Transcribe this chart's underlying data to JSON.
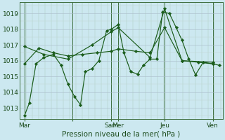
{
  "bg_color": "#cce8f0",
  "line_color": "#1a5c1a",
  "marker_color": "#1a5c1a",
  "xlabel": "Pression niveau de la mer( hPa )",
  "ylim": [
    1012.3,
    1019.7
  ],
  "yticks": [
    1013,
    1014,
    1015,
    1016,
    1017,
    1018,
    1019
  ],
  "xlim": [
    0,
    210
  ],
  "major_xticks": [
    5,
    55,
    95,
    102,
    150,
    200
  ],
  "major_xlabels": [
    "Mar",
    "",
    "Sam",
    "Mer",
    "Jeu",
    "Ven"
  ],
  "series1_x": [
    5,
    10,
    17,
    25,
    35,
    43,
    50,
    57,
    63,
    68,
    75,
    82,
    90,
    95,
    102,
    108,
    115,
    122,
    128,
    135,
    142,
    148,
    155,
    162,
    168,
    175,
    182,
    190,
    200,
    207
  ],
  "series1_y": [
    1012.5,
    1013.3,
    1015.8,
    1016.2,
    1016.4,
    1015.7,
    1014.5,
    1013.7,
    1013.2,
    1015.3,
    1015.5,
    1016.0,
    1017.9,
    1018.0,
    1018.3,
    1016.5,
    1015.3,
    1015.15,
    1015.7,
    1016.1,
    1016.1,
    1019.1,
    1019.0,
    1018.1,
    1017.3,
    1016.1,
    1015.1,
    1015.9,
    1015.8,
    1015.7
  ],
  "series2_x": [
    5,
    20,
    35,
    50,
    65,
    80,
    95,
    102,
    120,
    135,
    150,
    168,
    185,
    200
  ],
  "series2_y": [
    1015.8,
    1016.8,
    1016.5,
    1016.3,
    1016.4,
    1016.5,
    1016.6,
    1016.75,
    1016.6,
    1016.5,
    1018.1,
    1016.0,
    1015.9,
    1015.8
  ],
  "series3_x": [
    5,
    25,
    50,
    75,
    95,
    102,
    135,
    150,
    168,
    200
  ],
  "series3_y": [
    1016.9,
    1016.4,
    1016.1,
    1017.0,
    1017.85,
    1018.1,
    1016.2,
    1019.3,
    1016.0,
    1015.9
  ]
}
